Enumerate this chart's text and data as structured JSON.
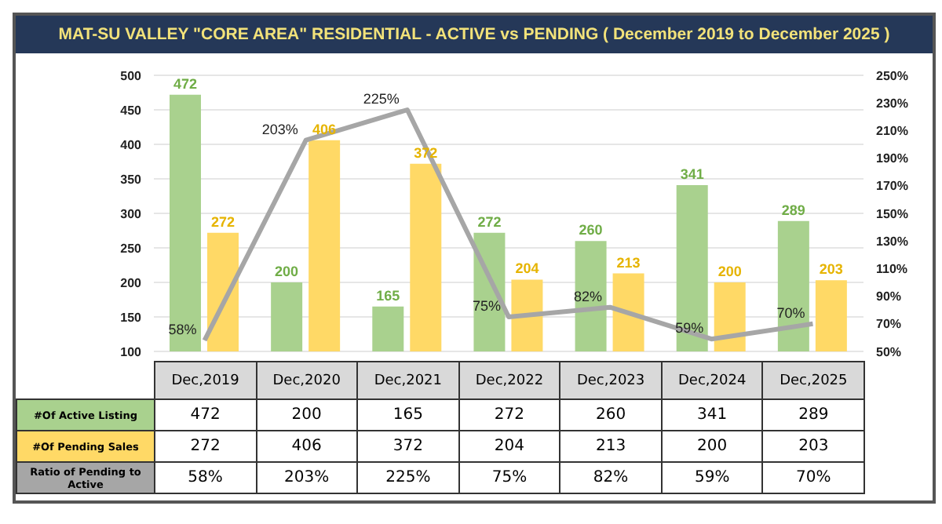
{
  "chart_data": {
    "type": "bar",
    "title": "MAT-SU VALLEY \"CORE AREA\" RESIDENTIAL  - ACTIVE vs PENDING ( December  2019 to December 2025 )",
    "categories": [
      "Dec,2019",
      "Dec,2020",
      "Dec,2021",
      "Dec,2022",
      "Dec,2023",
      "Dec,2024",
      "Dec,2025"
    ],
    "series": [
      {
        "name": "#Of Active Listing",
        "color": "#a9d18e",
        "values": [
          472,
          200,
          165,
          272,
          260,
          341,
          289
        ],
        "value_labels": [
          "472",
          "200",
          "165",
          "272",
          "260",
          "341",
          "289"
        ]
      },
      {
        "name": "#Of Pending Sales",
        "color": "#ffd966",
        "values": [
          272,
          406,
          372,
          204,
          213,
          200,
          203
        ],
        "value_labels": [
          "272",
          "406",
          "372",
          "204",
          "213",
          "200",
          "203"
        ]
      },
      {
        "name": "Ratio of Pending to Active",
        "type": "line",
        "axis": "y2",
        "color": "#a6a6a6",
        "values": [
          58,
          203,
          225,
          75,
          82,
          59,
          70
        ],
        "value_labels": [
          "58%",
          "203%",
          "225%",
          "75%",
          "82%",
          "59%",
          "70%"
        ]
      }
    ],
    "ylim": [
      100,
      500
    ],
    "yticks": [
      100,
      150,
      200,
      250,
      300,
      350,
      400,
      450,
      500
    ],
    "y2lim": [
      50,
      250
    ],
    "y2ticks": [
      {
        "value": 50,
        "label": "50%"
      },
      {
        "value": 70,
        "label": "70%"
      },
      {
        "value": 90,
        "label": "90%"
      },
      {
        "value": 110,
        "label": "110%"
      },
      {
        "value": 130,
        "label": "130%"
      },
      {
        "value": 150,
        "label": "150%"
      },
      {
        "value": 170,
        "label": "170%"
      },
      {
        "value": 190,
        "label": "190%"
      },
      {
        "value": 210,
        "label": "210%"
      },
      {
        "value": 230,
        "label": "230%"
      },
      {
        "value": 250,
        "label": "250%"
      }
    ],
    "grid": "y",
    "marker": "none"
  }
}
